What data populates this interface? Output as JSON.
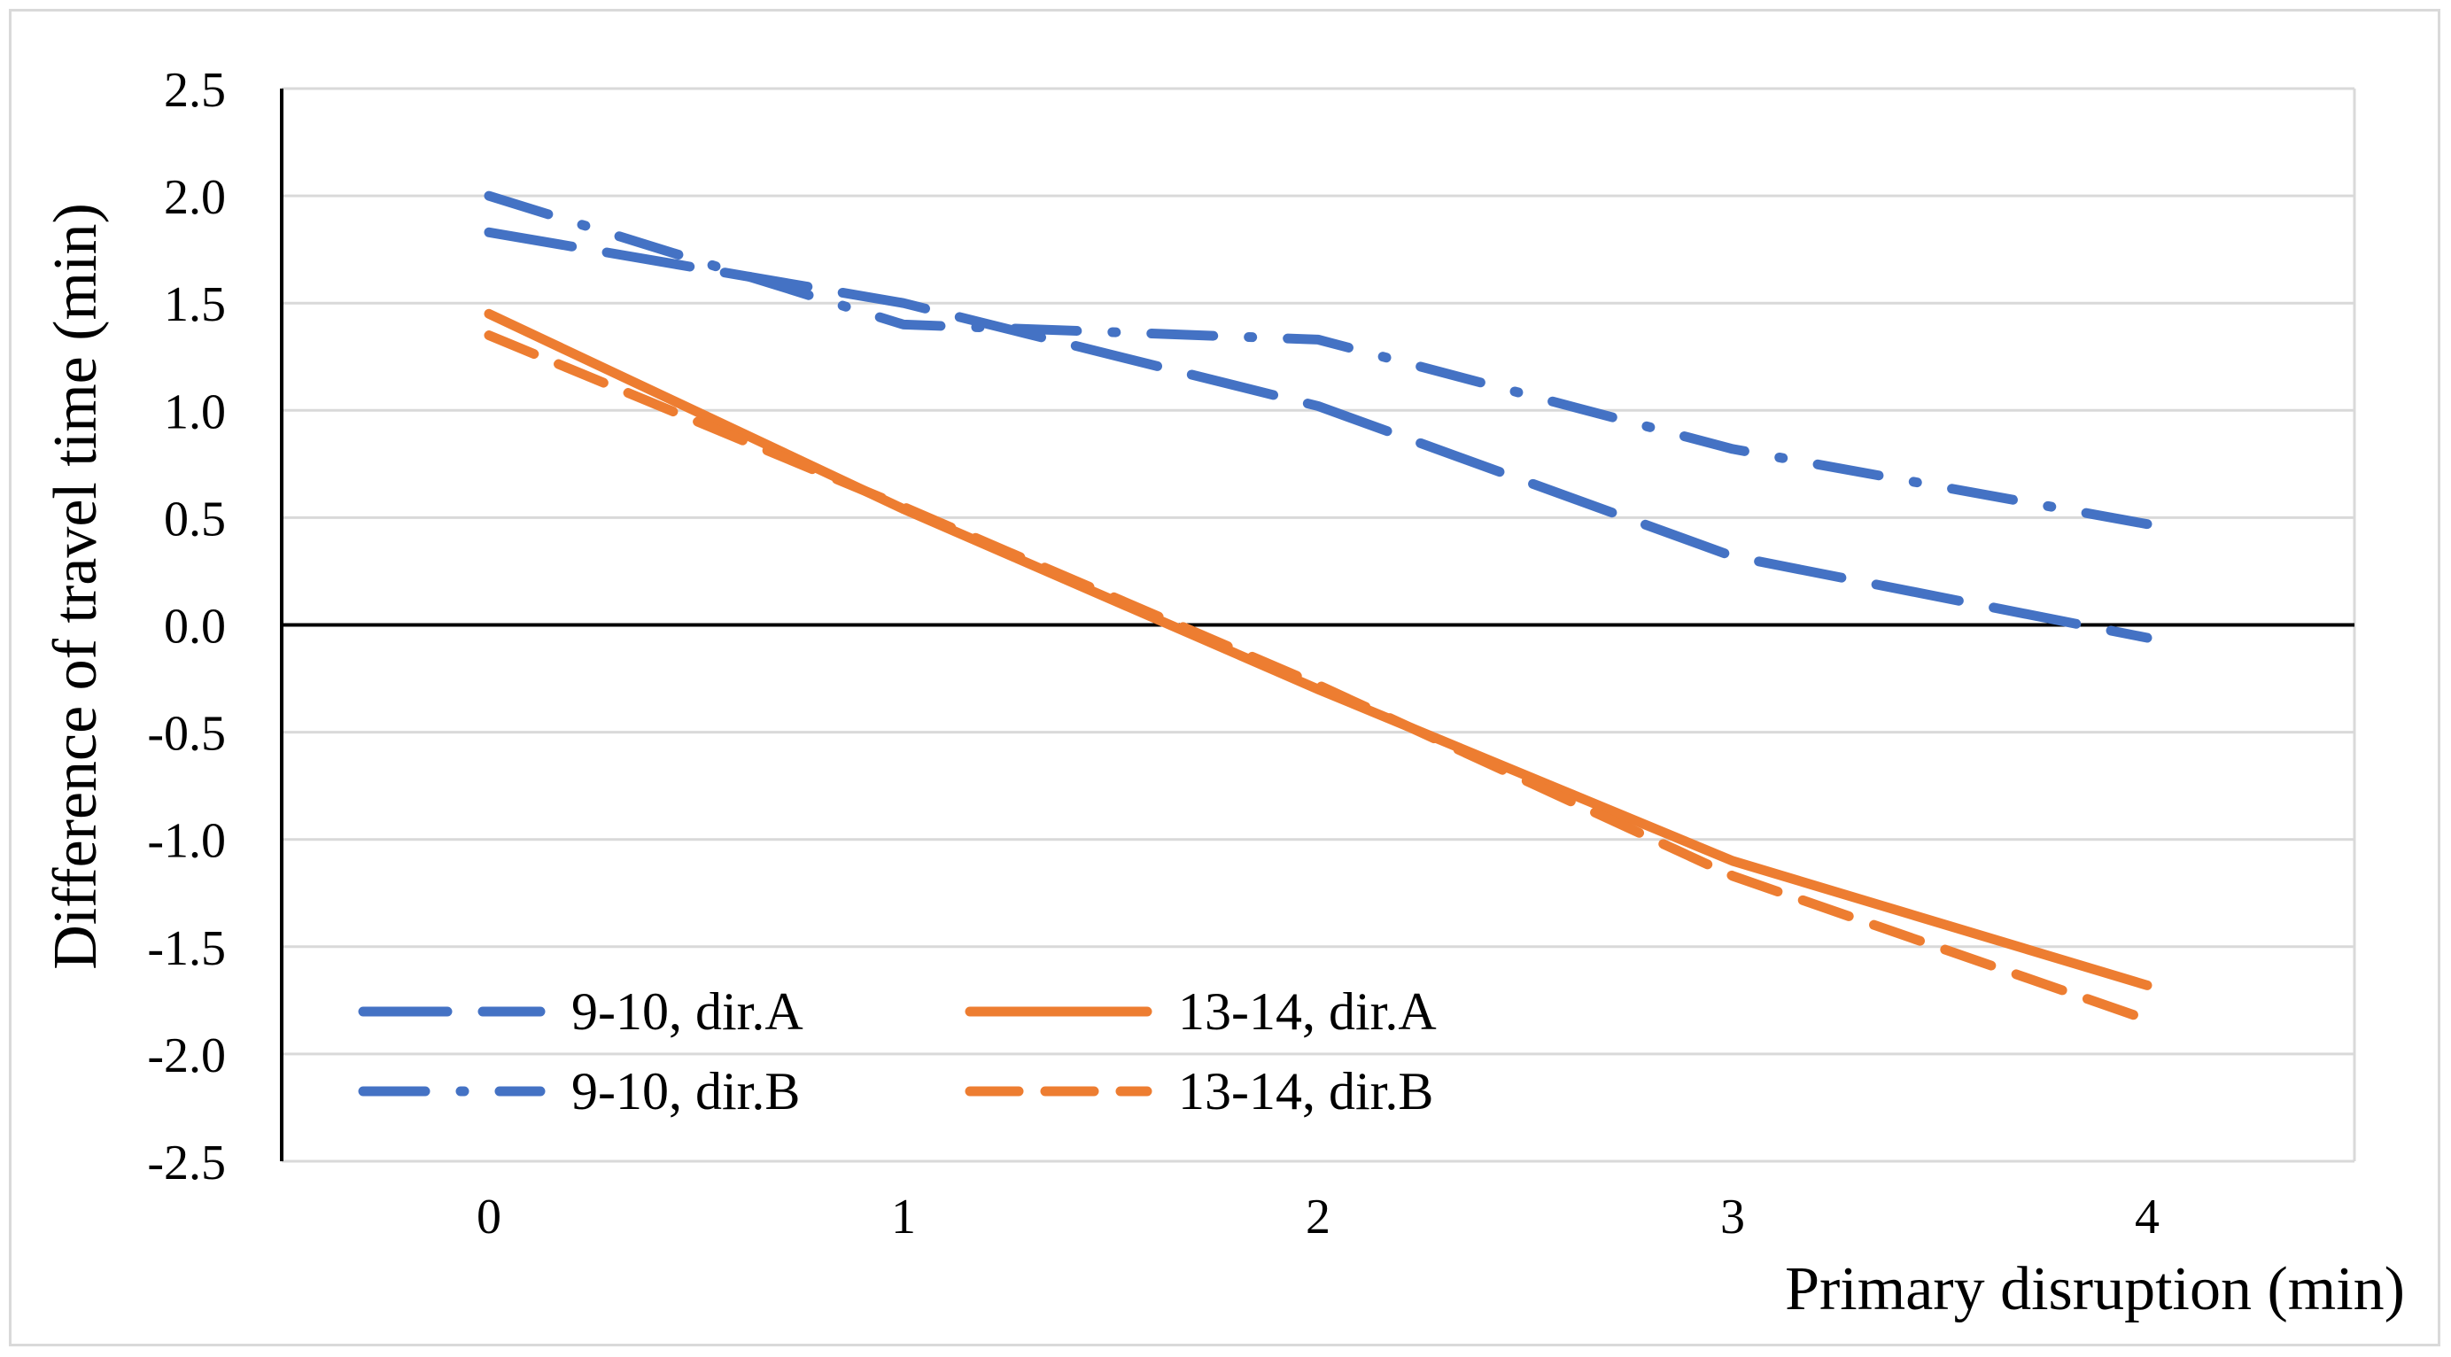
{
  "chart_data": {
    "type": "line",
    "title": "",
    "xlabel": "Primary disruption (min)",
    "ylabel": "Difference of travel time (min)",
    "xlim": [
      -0.5,
      4.5
    ],
    "ylim": [
      -2.5,
      2.5
    ],
    "x_ticks": [
      "0",
      "1",
      "2",
      "3",
      "4"
    ],
    "y_ticks": [
      "2.5",
      "2.0",
      "1.5",
      "1.0",
      "0.5",
      "0.0",
      "-0.5",
      "-1.0",
      "-1.5",
      "-2.0",
      "-2.5"
    ],
    "x": [
      0,
      1,
      2,
      3,
      4
    ],
    "grid": true,
    "legend_position": "bottom-left",
    "series": [
      {
        "name": "9-10,  dir.A",
        "color": "#4472C4",
        "dash": "long-dash",
        "x": [
          0,
          1,
          2,
          3,
          4
        ],
        "values": [
          1.83,
          1.5,
          1.02,
          0.32,
          -0.06
        ]
      },
      {
        "name": "13-14,  dir.A",
        "color": "#ED7D31",
        "dash": "solid",
        "x": [
          0,
          1,
          2,
          3,
          4
        ],
        "values": [
          1.45,
          0.54,
          -0.3,
          -1.1,
          -1.68
        ]
      },
      {
        "name": "9-10,  dir.B",
        "color": "#4472C4",
        "dash": "dash-dot",
        "x": [
          0,
          1,
          2,
          3,
          4
        ],
        "values": [
          2.0,
          1.4,
          1.33,
          0.82,
          0.47
        ]
      },
      {
        "name": "13-14,  dir.B",
        "color": "#ED7D31",
        "dash": "dash",
        "x": [
          0,
          1,
          2,
          3,
          4
        ],
        "values": [
          1.35,
          0.55,
          -0.28,
          -1.17,
          -1.84
        ]
      }
    ]
  }
}
